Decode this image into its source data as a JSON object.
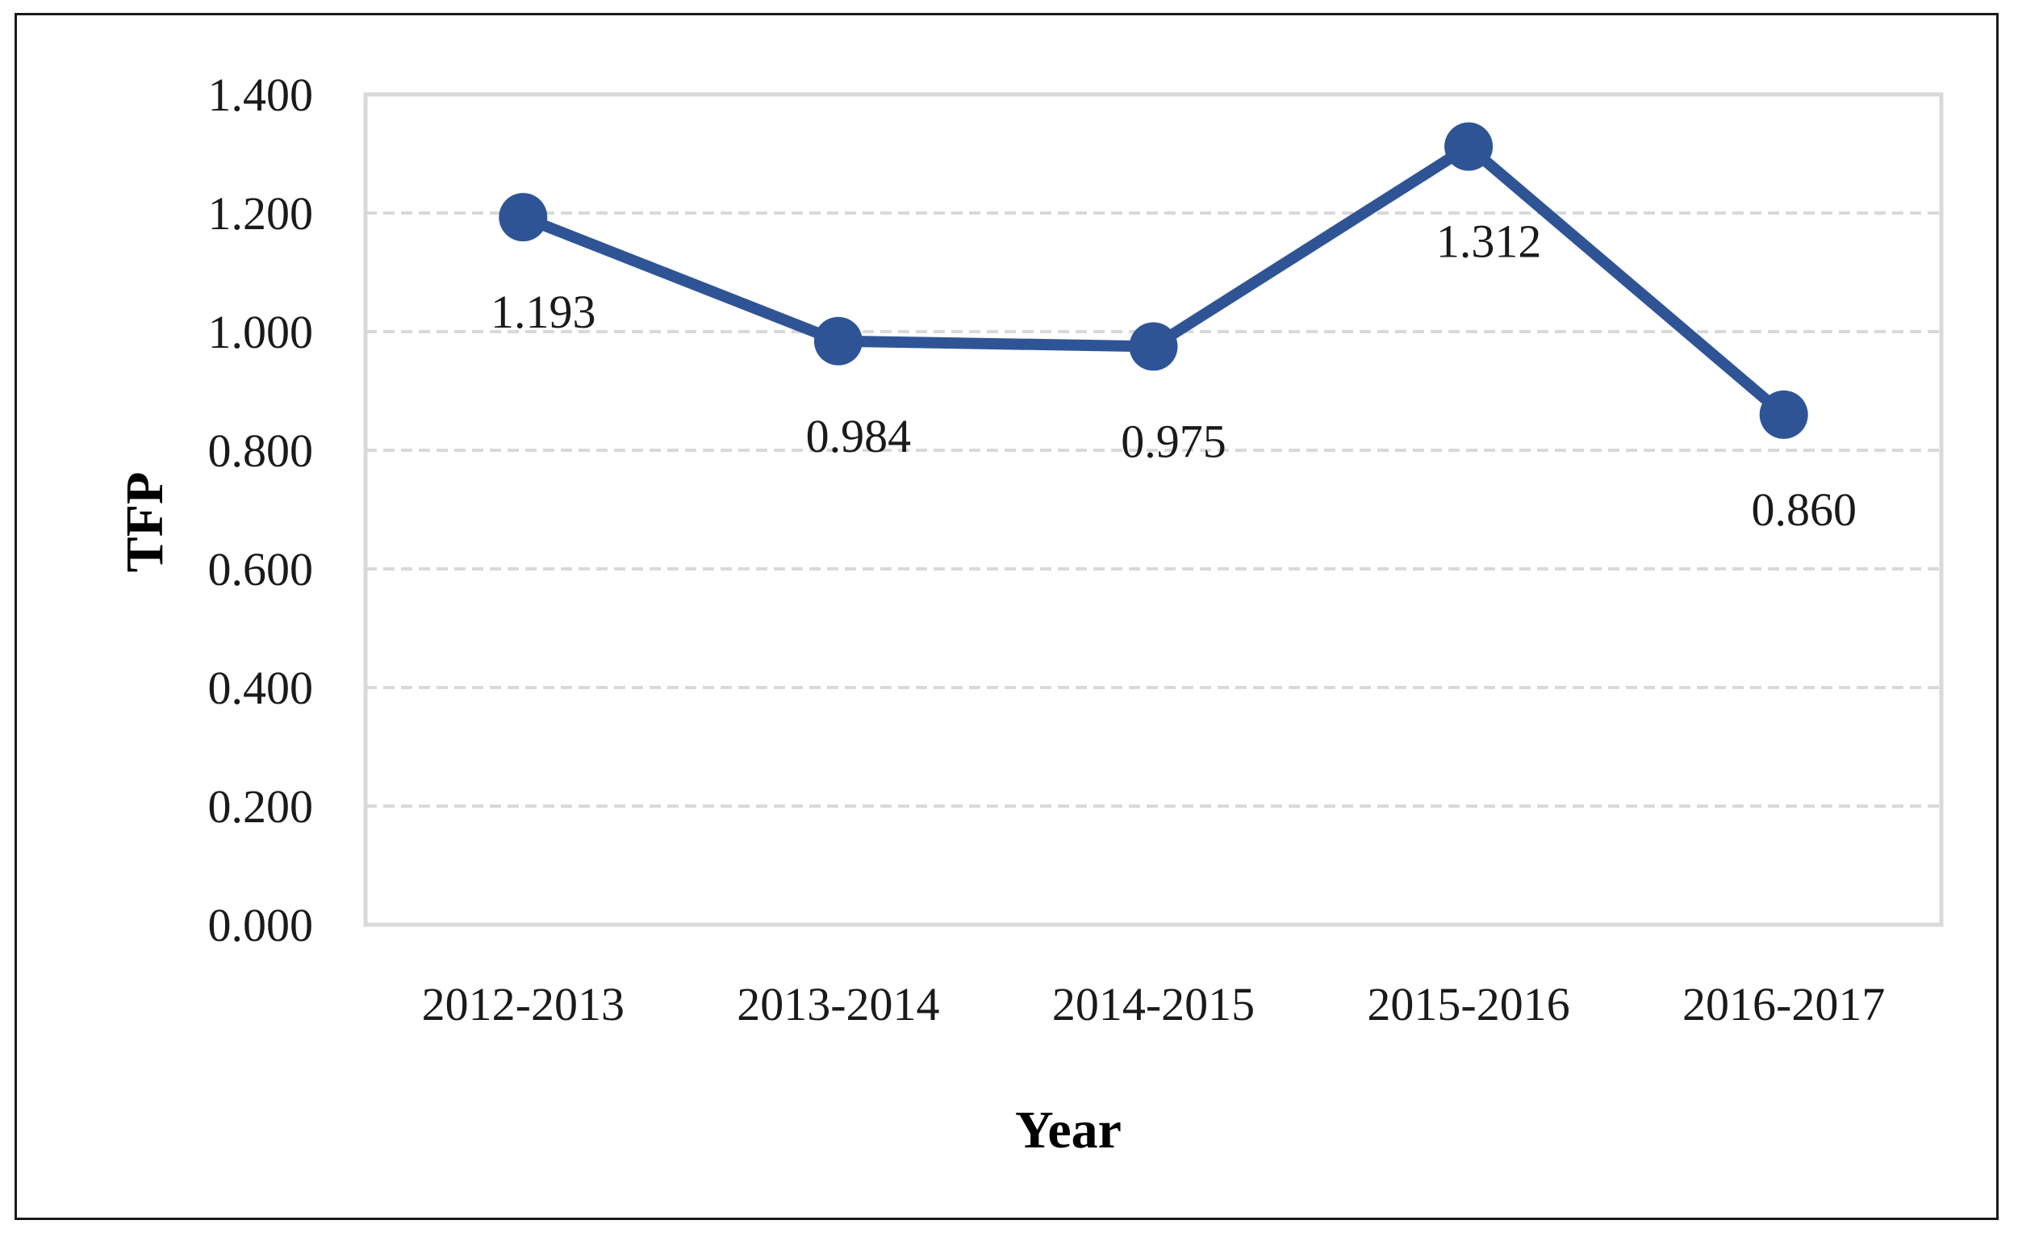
{
  "chart_data": {
    "type": "line",
    "categories": [
      "2012-2013",
      "2013-2014",
      "2014-2015",
      "2015-2016",
      "2016-2017"
    ],
    "series": [
      {
        "values": [
          1.193,
          0.984,
          0.975,
          1.312,
          0.86
        ],
        "color": "#2f5496"
      }
    ],
    "data_labels": [
      "1.193",
      "0.984",
      "0.975",
      "1.312",
      "0.860"
    ],
    "y_ticks": [
      "0.000",
      "0.200",
      "0.400",
      "0.600",
      "0.800",
      "1.000",
      "1.200",
      "1.400"
    ],
    "ylim": [
      0,
      1.4
    ],
    "xlabel": "Year",
    "ylabel": "TFP",
    "grid": true,
    "grid_style": "dashed",
    "legend": "none",
    "colors": {
      "line": "#2f5496",
      "grid": "#d9d9d9",
      "plot_border": "#d9d9d9"
    }
  }
}
